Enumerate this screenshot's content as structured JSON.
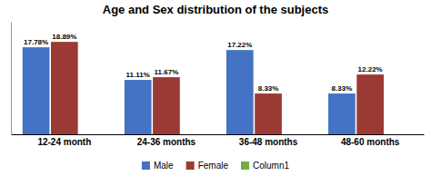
{
  "chart_data": {
    "type": "bar",
    "title": "Age and Sex distribution of the subjects",
    "categories": [
      "12-24 month",
      "24-36 months",
      "36-48 months",
      "48-60 months"
    ],
    "series": [
      {
        "name": "Male",
        "color": "#4472c4",
        "values": [
          17.78,
          11.11,
          17.22,
          8.33
        ],
        "value_labels": [
          "17.78%",
          "11.11%",
          "17.22%",
          "8.33%"
        ]
      },
      {
        "name": "Female",
        "color": "#9b3a34",
        "values": [
          18.89,
          11.67,
          8.33,
          12.22
        ],
        "value_labels": [
          "18.89%",
          "11.67%",
          "8.33%",
          "12.22%"
        ]
      },
      {
        "name": "Column1",
        "color": "#70ad47",
        "values": [
          0.0,
          0.0,
          0.0,
          0.0
        ]
      }
    ],
    "ylim": [
      0,
      23
    ],
    "grid": false,
    "data_labels": true,
    "tick_labels": "x",
    "legend": "bottom"
  }
}
